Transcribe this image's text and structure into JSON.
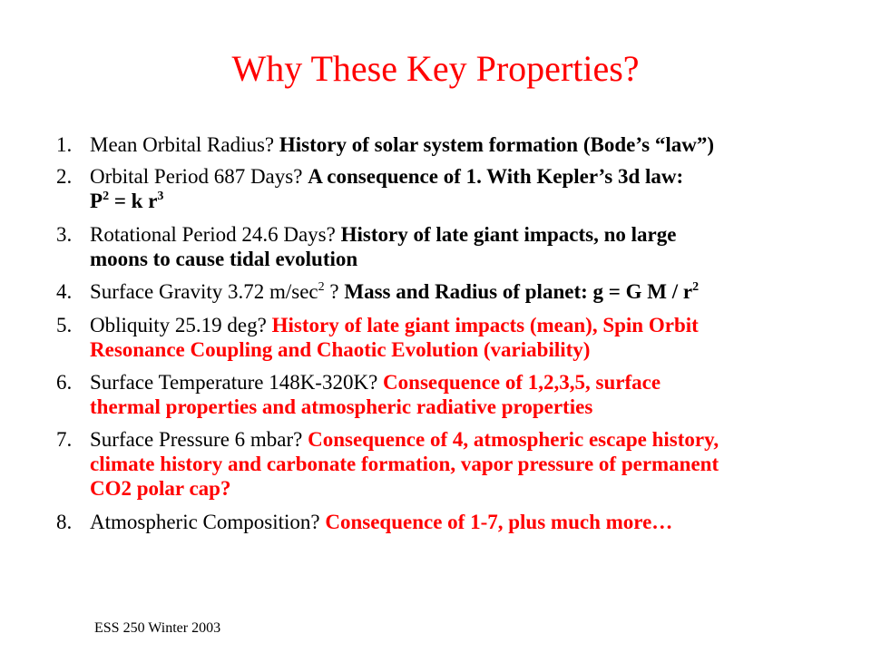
{
  "slide": {
    "title": "Why These Key Properties?",
    "footer": "ESS 250 Winter 2003",
    "items": [
      {
        "number": "1.",
        "question": "Mean Orbital Radius? ",
        "answer": "History of solar system formation (Bode’s “law”)"
      },
      {
        "number": "2.",
        "question": "Orbital Period 687 Days? ",
        "answer_line1": "A consequence of 1. With Kepler’s 3d law:",
        "formula_p": "P",
        "formula_p_exp": "2",
        "formula_mid": " = k r",
        "formula_r_exp": "3"
      },
      {
        "number": "3.",
        "question": "Rotational Period  24.6 Days? ",
        "answer_line1": "History of late giant impacts, no large",
        "answer_line2": "moons to cause tidal evolution"
      },
      {
        "number": "4.",
        "question": "Surface Gravity 3.72 m/sec",
        "question_exp": "2",
        "question_tail": " ? ",
        "answer": "Mass and Radius of planet: g = G M / r",
        "answer_exp": "2"
      },
      {
        "number": "5.",
        "question": "Obliquity 25.19 deg? ",
        "answer_line1": "History of late giant impacts (mean), Spin Orbit",
        "answer_line2": "Resonance Coupling and Chaotic Evolution (variability)"
      },
      {
        "number": "6.",
        "question": "Surface Temperature 148K-320K?  ",
        "answer_line1": "Consequence of 1,2,3,5, surface",
        "answer_line2": "thermal properties and atmospheric radiative properties"
      },
      {
        "number": "7.",
        "question": "Surface Pressure 6 mbar? ",
        "answer_line1": "Consequence of 4, atmospheric escape history,",
        "answer_line2": "climate history and carbonate formation, vapor pressure of permanent",
        "answer_line3": "CO2 polar cap?"
      },
      {
        "number": "8.",
        "question": "Atmospheric Composition?  ",
        "answer": "Consequence of 1-7, plus much more…"
      }
    ]
  },
  "colors": {
    "title": "#ff0000",
    "highlight": "#ff0000",
    "text": "#000000",
    "background": "#ffffff"
  }
}
